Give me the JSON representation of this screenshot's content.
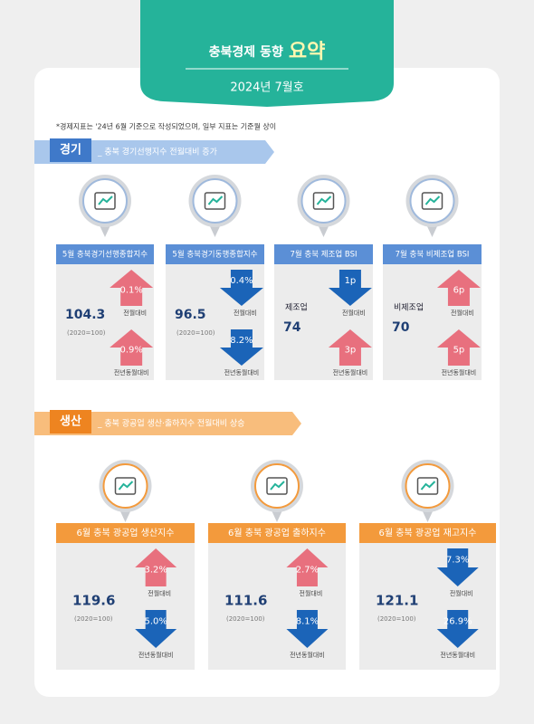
{
  "header": {
    "title_main": "충북경제 동향",
    "title_accent": "요약",
    "subtitle": "2024년 7월호"
  },
  "note": "*경제지표는 '24년 6월 기준으로 작성되었으며, 일부 지표는 기준월 상이",
  "sections": [
    {
      "label": "경기",
      "description": "_ 충북 경기선행지수 전월대비 증가",
      "cards": [
        {
          "title": "5월 충북경기선행종합지수",
          "value": "104.3",
          "base": "(2020=100)",
          "arrows": [
            {
              "value": "0.1%",
              "direction": "up",
              "label": "전월대비"
            },
            {
              "value": "0.9%",
              "direction": "up",
              "label": "전년동월대비"
            }
          ]
        },
        {
          "title": "5월 충북경기동행종합지수",
          "value": "96.5",
          "base": "(2020=100)",
          "arrows": [
            {
              "value": "0.4%",
              "direction": "down",
              "label": "전월대비"
            },
            {
              "value": "8.2%",
              "direction": "down",
              "label": "전년동월대비"
            }
          ]
        },
        {
          "title": "7월 충북 제조업 BSI",
          "sublabel": "제조업",
          "value": "74",
          "arrows": [
            {
              "value": "1p",
              "direction": "down",
              "label": "전월대비"
            },
            {
              "value": "3p",
              "direction": "up",
              "label": "전년동월대비"
            }
          ]
        },
        {
          "title": "7월 충북 비제조업 BSI",
          "sublabel": "비제조업",
          "value": "70",
          "arrows": [
            {
              "value": "6p",
              "direction": "up",
              "label": "전월대비"
            },
            {
              "value": "5p",
              "direction": "up",
              "label": "전년동월대비"
            }
          ]
        }
      ]
    },
    {
      "label": "생산",
      "description": "_ 충북 광공업 생산·출하지수 전월대비 상승",
      "cards": [
        {
          "title": "6월 충북 광공업 생산지수",
          "value": "119.6",
          "base": "(2020=100)",
          "arrows": [
            {
              "value": "3.2%",
              "direction": "up",
              "label": "전월대비"
            },
            {
              "value": "5.0%",
              "direction": "down",
              "label": "전년동월대비"
            }
          ]
        },
        {
          "title": "6월 충북 광공업 출하지수",
          "value": "111.6",
          "base": "(2020=100)",
          "arrows": [
            {
              "value": "2.7%",
              "direction": "up",
              "label": "전월대비"
            },
            {
              "value": "8.1%",
              "direction": "down",
              "label": "전년동월대비"
            }
          ]
        },
        {
          "title": "6월 충북 광공업 재고지수",
          "value": "121.1",
          "base": "(2020=100)",
          "arrows": [
            {
              "value": "7.3%",
              "direction": "down",
              "label": "전월대비"
            },
            {
              "value": "26.9%",
              "direction": "down",
              "label": "전년동월대비"
            }
          ]
        }
      ]
    }
  ]
}
